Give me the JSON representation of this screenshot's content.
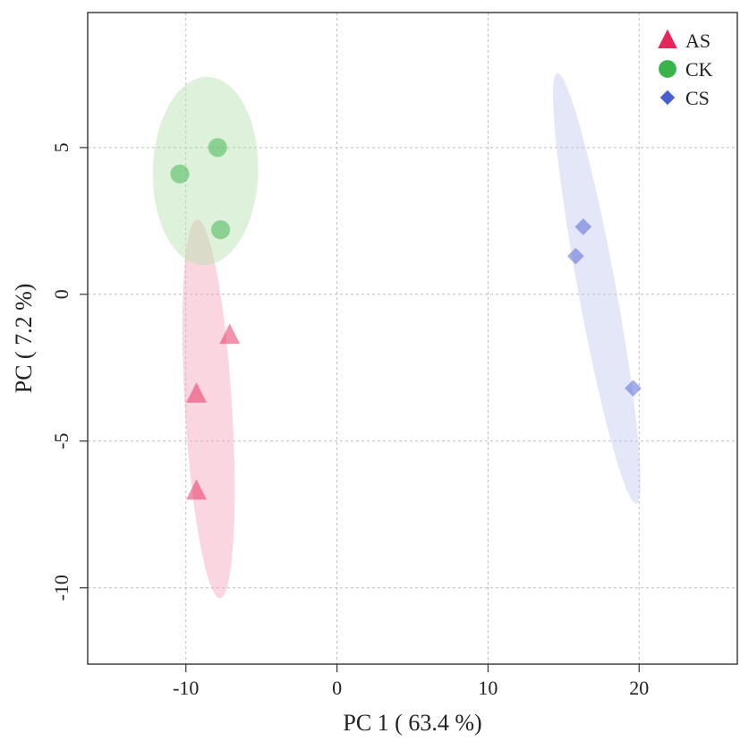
{
  "chart_data": {
    "type": "scatter",
    "title": "",
    "xlabel": "PC 1 ( 63.4 %)",
    "ylabel": "PC ( 7.2 %)",
    "xlim": [
      -16.5,
      26.5
    ],
    "ylim": [
      -12.6,
      9.6
    ],
    "xticks": [
      -10,
      0,
      10,
      20
    ],
    "yticks": [
      5,
      0,
      -5,
      -10
    ],
    "xtick_labels": [
      "-10",
      "0",
      "10",
      "20"
    ],
    "ytick_labels": [
      "5",
      "0",
      "-5",
      "-10"
    ],
    "grid": true,
    "legend_position": "top-right",
    "series": [
      {
        "name": "AS",
        "marker": "triangle",
        "color": "#e8255a",
        "ellipse_color": "#f4a6bb",
        "points": [
          [
            -7.1,
            -1.4
          ],
          [
            -9.3,
            -3.4
          ],
          [
            -9.3,
            -6.7
          ]
        ],
        "ellipse": {
          "cx": -8.5,
          "cy": -3.9,
          "rx": 6.5,
          "ry": 1.55,
          "angle": -83
        }
      },
      {
        "name": "CK",
        "marker": "circle",
        "color": "#38b44a",
        "ellipse_color": "#b5dfb0",
        "points": [
          [
            -10.4,
            4.1
          ],
          [
            -7.9,
            5.0
          ],
          [
            -7.7,
            2.2
          ]
        ],
        "ellipse": {
          "cx": -8.7,
          "cy": 4.2,
          "rx": 3.2,
          "ry": 3.5,
          "angle": -80
        }
      },
      {
        "name": "CS",
        "marker": "diamond",
        "color": "#4a5fcf",
        "ellipse_color": "#c3caf0",
        "points": [
          [
            16.3,
            2.3
          ],
          [
            15.8,
            1.3
          ],
          [
            19.6,
            -3.2
          ]
        ],
        "ellipse": {
          "cx": 17.2,
          "cy": 0.2,
          "rx": 7.8,
          "ry": 1.2,
          "angle": -70
        }
      }
    ]
  }
}
